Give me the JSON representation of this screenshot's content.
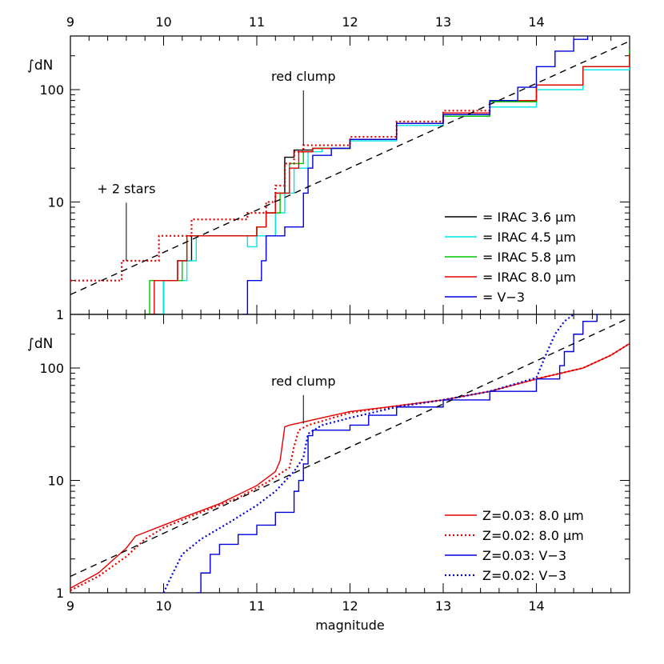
{
  "chart_data": [
    {
      "type": "line",
      "panel": "top",
      "ylabel": "∫dN",
      "xlim": [
        9,
        15
      ],
      "ylim": [
        1,
        300
      ],
      "yscale": "log",
      "x_ticks_labels_top": [
        "9",
        "10",
        "11",
        "12",
        "13",
        "14"
      ],
      "y_tick_labels": [
        "1",
        "10",
        "100"
      ],
      "annotations": [
        {
          "text": "red clump",
          "x": 11.5,
          "y": 120,
          "arrow_to_y": 32
        },
        {
          "text": "+ 2 stars",
          "x": 9.6,
          "y": 12,
          "arrow_to_y": 3
        }
      ],
      "legend_position": "lower-right",
      "legend": [
        {
          "label": "= IRAC 3.6 μm",
          "color": "#000000",
          "dash": "solid"
        },
        {
          "label": "= IRAC 4.5 μm",
          "color": "#00e5e5",
          "dash": "solid"
        },
        {
          "label": "= IRAC 5.8 μm",
          "color": "#00c800",
          "dash": "solid"
        },
        {
          "label": "= IRAC 8.0 μm",
          "color": "#e60000",
          "dash": "solid"
        },
        {
          "label": "= V−3",
          "color": "#0000dd",
          "dash": "solid"
        }
      ],
      "series": [
        {
          "name": "IRAC 3.6 μm",
          "color": "#000000",
          "style": "solid",
          "step": true,
          "points": [
            [
              9.8,
              1
            ],
            [
              10,
              2
            ],
            [
              10.15,
              3
            ],
            [
              10.3,
              5
            ],
            [
              10.9,
              5
            ],
            [
              11.0,
              6
            ],
            [
              11.1,
              8
            ],
            [
              11.2,
              12
            ],
            [
              11.3,
              25
            ],
            [
              11.4,
              29
            ],
            [
              11.6,
              30
            ],
            [
              12.0,
              36
            ],
            [
              12.5,
              50
            ],
            [
              13.0,
              60
            ],
            [
              13.5,
              80
            ],
            [
              14.0,
              110
            ],
            [
              14.5,
              160
            ],
            [
              15,
              215
            ]
          ]
        },
        {
          "name": "IRAC 4.5 μm",
          "color": "#00e5e5",
          "style": "solid",
          "step": true,
          "points": [
            [
              9.95,
              1
            ],
            [
              10.0,
              2
            ],
            [
              10.25,
              3
            ],
            [
              10.35,
              5
            ],
            [
              10.9,
              4
            ],
            [
              11.0,
              5
            ],
            [
              11.2,
              8
            ],
            [
              11.3,
              12
            ],
            [
              11.4,
              20
            ],
            [
              11.55,
              28
            ],
            [
              11.7,
              30
            ],
            [
              12.0,
              35
            ],
            [
              12.5,
              48
            ],
            [
              13.0,
              58
            ],
            [
              13.5,
              70
            ],
            [
              14.0,
              100
            ],
            [
              14.5,
              150
            ],
            [
              15,
              210
            ]
          ]
        },
        {
          "name": "IRAC 5.8 μm",
          "color": "#00c800",
          "style": "solid",
          "step": true,
          "points": [
            [
              9.8,
              1
            ],
            [
              9.85,
              2
            ],
            [
              10.2,
              3
            ],
            [
              10.25,
              5
            ],
            [
              10.9,
              5
            ],
            [
              11.0,
              6
            ],
            [
              11.1,
              8
            ],
            [
              11.25,
              12
            ],
            [
              11.35,
              22
            ],
            [
              11.5,
              28
            ],
            [
              11.6,
              30
            ],
            [
              12.0,
              36
            ],
            [
              12.5,
              50
            ],
            [
              13.0,
              58
            ],
            [
              13.5,
              78
            ],
            [
              14.0,
              110
            ],
            [
              14.5,
              160
            ],
            [
              15,
              225
            ]
          ]
        },
        {
          "name": "IRAC 8.0 μm",
          "color": "#e60000",
          "style": "solid",
          "step": true,
          "points": [
            [
              9.85,
              1
            ],
            [
              9.9,
              2
            ],
            [
              10.15,
              3
            ],
            [
              10.25,
              5
            ],
            [
              10.9,
              5
            ],
            [
              11.0,
              6
            ],
            [
              11.1,
              8
            ],
            [
              11.2,
              12
            ],
            [
              11.35,
              20
            ],
            [
              11.45,
              28
            ],
            [
              11.6,
              30
            ],
            [
              12.0,
              36
            ],
            [
              12.5,
              50
            ],
            [
              13.0,
              62
            ],
            [
              13.5,
              80
            ],
            [
              14.0,
              110
            ],
            [
              14.5,
              160
            ],
            [
              15,
              210
            ]
          ]
        },
        {
          "name": "+2 stars",
          "color": "#e60000",
          "style": "dotted",
          "step": true,
          "points": [
            [
              9.0,
              2
            ],
            [
              9.5,
              2
            ],
            [
              9.55,
              3
            ],
            [
              9.9,
              3
            ],
            [
              9.95,
              5
            ],
            [
              10.25,
              5
            ],
            [
              10.3,
              7
            ],
            [
              10.85,
              7
            ],
            [
              10.9,
              8
            ],
            [
              11.1,
              10
            ],
            [
              11.2,
              14
            ],
            [
              11.3,
              22
            ],
            [
              11.4,
              28
            ],
            [
              11.5,
              32
            ],
            [
              12.0,
              38
            ],
            [
              12.5,
              52
            ],
            [
              13.0,
              65
            ],
            [
              13.5,
              80
            ]
          ]
        },
        {
          "name": "V−3",
          "color": "#0000dd",
          "style": "solid",
          "step": true,
          "points": [
            [
              10.85,
              1
            ],
            [
              10.9,
              2
            ],
            [
              11.05,
              3
            ],
            [
              11.1,
              5
            ],
            [
              11.3,
              6
            ],
            [
              11.5,
              12
            ],
            [
              11.55,
              20
            ],
            [
              11.6,
              26
            ],
            [
              11.8,
              30
            ],
            [
              12.0,
              36
            ],
            [
              12.5,
              50
            ],
            [
              13.0,
              60
            ],
            [
              13.5,
              80
            ],
            [
              13.8,
              105
            ],
            [
              14.0,
              160
            ],
            [
              14.2,
              220
            ],
            [
              14.4,
              280
            ],
            [
              14.55,
              300
            ]
          ]
        },
        {
          "name": "fit",
          "color": "#000000",
          "style": "dashed",
          "step": false,
          "points": [
            [
              9.0,
              1.5
            ],
            [
              15,
              270
            ]
          ]
        }
      ]
    },
    {
      "type": "line",
      "panel": "bottom",
      "ylabel": "∫dN",
      "xlabel": "magnitude",
      "xlim": [
        9,
        15
      ],
      "ylim": [
        1,
        300
      ],
      "yscale": "log",
      "x_tick_labels": [
        "9",
        "10",
        "11",
        "12",
        "13",
        "14"
      ],
      "y_tick_labels": [
        "1",
        "10",
        "100"
      ],
      "annotations": [
        {
          "text": "red clump",
          "x": 11.5,
          "y": 70,
          "arrow_to_y": 32
        }
      ],
      "legend_position": "lower-right",
      "legend": [
        {
          "label": "Z=0.03: 8.0 μm",
          "color": "#e60000",
          "dash": "solid"
        },
        {
          "label": "Z=0.02: 8.0 μm",
          "color": "#e60000",
          "dash": "dotted"
        },
        {
          "label": "Z=0.03: V−3",
          "color": "#0000dd",
          "dash": "solid"
        },
        {
          "label": "Z=0.02: V−3",
          "color": "#0000dd",
          "dash": "dotted"
        }
      ],
      "series": [
        {
          "name": "Z=0.03: 8.0 μm",
          "color": "#e60000",
          "style": "solid",
          "step": false,
          "points": [
            [
              9.0,
              1.1
            ],
            [
              9.3,
              1.5
            ],
            [
              9.6,
              2.5
            ],
            [
              9.7,
              3.2
            ],
            [
              10.0,
              4.0
            ],
            [
              10.3,
              5.0
            ],
            [
              10.6,
              6.2
            ],
            [
              11.0,
              9.0
            ],
            [
              11.2,
              12
            ],
            [
              11.25,
              15
            ],
            [
              11.3,
              30
            ],
            [
              11.35,
              31
            ],
            [
              12.0,
              41
            ],
            [
              12.5,
              46
            ],
            [
              13.0,
              52
            ],
            [
              13.5,
              62
            ],
            [
              14.0,
              80
            ],
            [
              14.5,
              100
            ],
            [
              14.8,
              130
            ],
            [
              15,
              165
            ]
          ]
        },
        {
          "name": "Z=0.02: 8.0 μm",
          "color": "#e60000",
          "style": "dotted",
          "step": false,
          "points": [
            [
              9.0,
              1.05
            ],
            [
              9.3,
              1.4
            ],
            [
              9.6,
              2.1
            ],
            [
              9.8,
              3.0
            ],
            [
              10.0,
              3.8
            ],
            [
              10.4,
              5.2
            ],
            [
              10.8,
              7.0
            ],
            [
              11.1,
              9.5
            ],
            [
              11.35,
              13
            ],
            [
              11.4,
              20
            ],
            [
              11.45,
              28
            ],
            [
              11.55,
              31
            ],
            [
              12.0,
              40
            ],
            [
              12.5,
              46
            ],
            [
              13.0,
              52
            ],
            [
              13.5,
              62
            ],
            [
              14.0,
              80
            ],
            [
              14.5,
              100
            ],
            [
              14.8,
              130
            ],
            [
              15,
              165
            ]
          ]
        },
        {
          "name": "Z=0.03: V−3",
          "color": "#0000dd",
          "style": "solid",
          "step": true,
          "points": [
            [
              10.35,
              1.0
            ],
            [
              10.4,
              1.5
            ],
            [
              10.5,
              2.2
            ],
            [
              10.6,
              2.7
            ],
            [
              10.8,
              3.3
            ],
            [
              11.0,
              4.0
            ],
            [
              11.2,
              5.2
            ],
            [
              11.4,
              8.0
            ],
            [
              11.45,
              10
            ],
            [
              11.5,
              14
            ],
            [
              11.55,
              25
            ],
            [
              11.6,
              28
            ],
            [
              12.0,
              31
            ],
            [
              12.2,
              38
            ],
            [
              12.5,
              45
            ],
            [
              13.0,
              52
            ],
            [
              13.5,
              62
            ],
            [
              14.0,
              80
            ],
            [
              14.25,
              105
            ],
            [
              14.3,
              140
            ],
            [
              14.4,
              200
            ],
            [
              14.5,
              260
            ],
            [
              14.65,
              300
            ]
          ]
        },
        {
          "name": "Z=0.02: V−3",
          "color": "#0000dd",
          "style": "dotted",
          "step": false,
          "points": [
            [
              10.0,
              1.0
            ],
            [
              10.1,
              1.5
            ],
            [
              10.2,
              2.2
            ],
            [
              10.4,
              3.0
            ],
            [
              10.7,
              4.2
            ],
            [
              11.0,
              6.0
            ],
            [
              11.2,
              8.0
            ],
            [
              11.4,
              12
            ],
            [
              11.5,
              16
            ],
            [
              11.55,
              26
            ],
            [
              11.7,
              31
            ],
            [
              12.0,
              36
            ],
            [
              12.5,
              45
            ],
            [
              13.0,
              52
            ],
            [
              13.5,
              62
            ],
            [
              14.0,
              82
            ],
            [
              14.1,
              130
            ],
            [
              14.2,
              200
            ],
            [
              14.3,
              260
            ],
            [
              14.4,
              300
            ]
          ]
        },
        {
          "name": "fit",
          "color": "#000000",
          "style": "dashed",
          "step": false,
          "points": [
            [
              9.0,
              1.4
            ],
            [
              15,
              280
            ]
          ]
        }
      ]
    }
  ]
}
